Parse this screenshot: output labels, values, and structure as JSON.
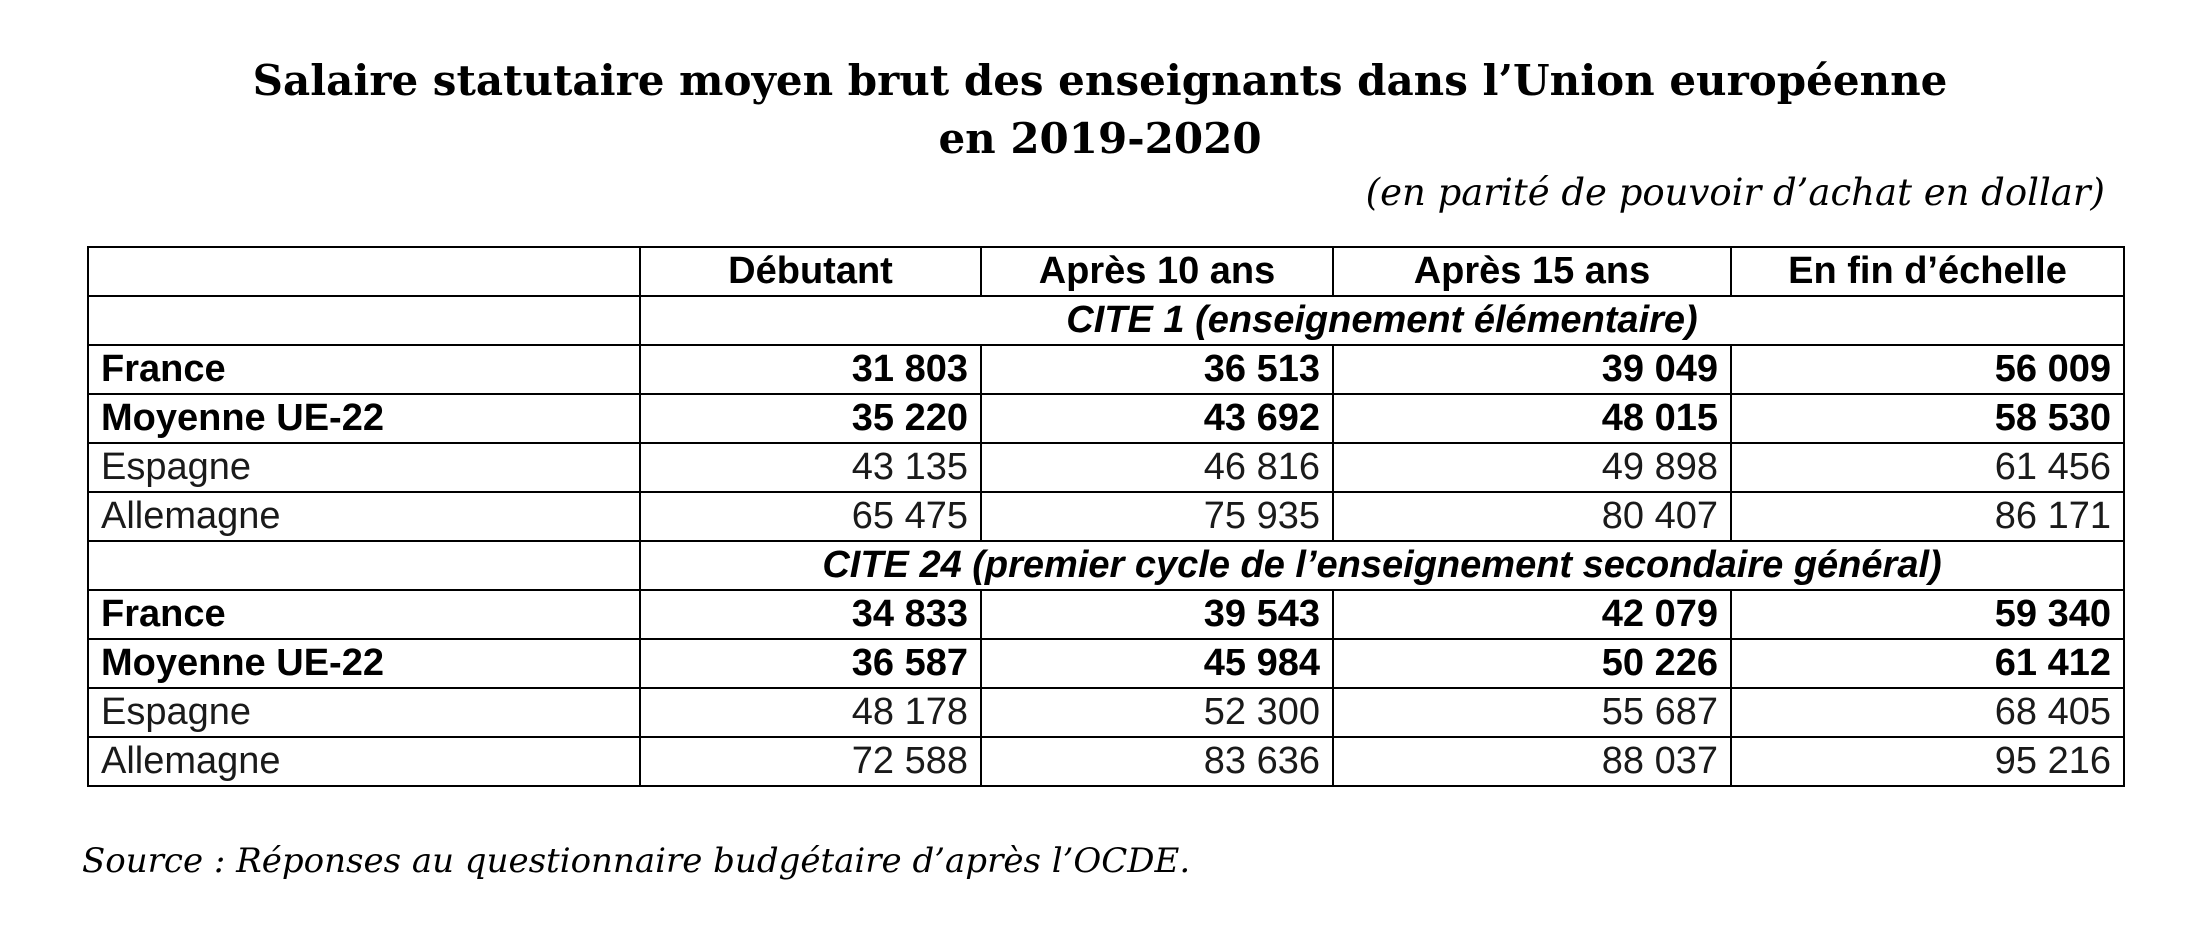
{
  "title": {
    "line1": "Salaire statutaire moyen brut des enseignants dans l’Union européenne",
    "line2": "en 2019-2020"
  },
  "unit_note": "(en parité de pouvoir d’achat en dollar)",
  "table": {
    "headers": [
      "",
      "Débutant",
      "Après 10 ans",
      "Après 15 ans",
      "En fin d’échelle"
    ],
    "sections": [
      {
        "label": "CITE 1 (enseignement élémentaire)",
        "rows": [
          {
            "country": "France",
            "bold": true,
            "values": [
              "31 803",
              "36 513",
              "39 049",
              "56 009"
            ]
          },
          {
            "country": "Moyenne UE-22",
            "bold": true,
            "values": [
              "35 220",
              "43 692",
              "48 015",
              "58 530"
            ]
          },
          {
            "country": "Espagne",
            "bold": false,
            "values": [
              "43 135",
              "46 816",
              "49 898",
              "61 456"
            ]
          },
          {
            "country": "Allemagne",
            "bold": false,
            "values": [
              "65 475",
              "75 935",
              "80 407",
              "86 171"
            ]
          }
        ]
      },
      {
        "label": "CITE 24 (premier cycle de l’enseignement secondaire général)",
        "rows": [
          {
            "country": "France",
            "bold": true,
            "values": [
              "34 833",
              "39 543",
              "42 079",
              "59 340"
            ]
          },
          {
            "country": "Moyenne UE-22",
            "bold": true,
            "values": [
              "36 587",
              "45 984",
              "50 226",
              "61 412"
            ]
          },
          {
            "country": "Espagne",
            "bold": false,
            "values": [
              "48 178",
              "52 300",
              "55 687",
              "68 405"
            ]
          },
          {
            "country": "Allemagne",
            "bold": false,
            "values": [
              "72 588",
              "83 636",
              "88 037",
              "95 216"
            ]
          }
        ]
      }
    ]
  },
  "source": "Source : Réponses au questionnaire budgétaire d’après l’OCDE."
}
